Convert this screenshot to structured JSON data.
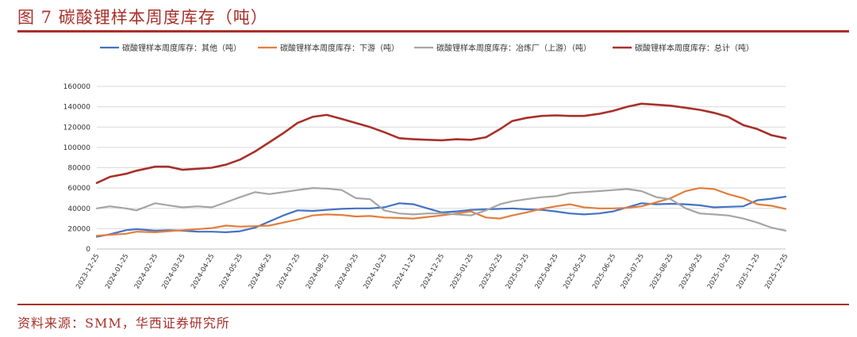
{
  "figure": {
    "title": "图 7 碳酸锂样本周度库存（吨）",
    "source": "资料来源：SMM，华西证券研究所"
  },
  "chart_data": {
    "type": "line",
    "ylim": [
      0,
      160000
    ],
    "yticks": [
      "0",
      "20000",
      "40000",
      "60000",
      "80000",
      "100000",
      "120000",
      "140000",
      "160000"
    ],
    "xticks": [
      "2023-12-25",
      "2024-01-25",
      "2024-02-25",
      "2024-03-25",
      "2024-04-25",
      "2024-05-25",
      "2024-06-25",
      "2024-07-25",
      "2024-08-25",
      "2024-09-25",
      "2024-10-25",
      "2024-11-25",
      "2024-12-25",
      "2025-01-25",
      "2025-02-25",
      "2025-03-25",
      "2025-04-25",
      "2025-05-25",
      "2025-06-25",
      "2025-07-25",
      "2025-08-25",
      "2025-09-25",
      "2025-10-25",
      "2025-11-25",
      "2025-12-25"
    ],
    "x_start": "2023-12-25",
    "x_end": "2025-12-25",
    "legend_position": "top",
    "series": [
      {
        "name": "碳酸锂样本周度库存：其他（吨）",
        "color": "#4472c4",
        "points": [
          [
            "2023-12-25",
            12000
          ],
          [
            "2024-01-08",
            14500
          ],
          [
            "2024-01-25",
            18500
          ],
          [
            "2024-02-05",
            19500
          ],
          [
            "2024-02-25",
            18000
          ],
          [
            "2024-03-10",
            18500
          ],
          [
            "2024-03-25",
            18000
          ],
          [
            "2024-04-10",
            17000
          ],
          [
            "2024-04-25",
            17000
          ],
          [
            "2024-05-10",
            16500
          ],
          [
            "2024-05-25",
            17500
          ],
          [
            "2024-06-10",
            21000
          ],
          [
            "2024-06-25",
            27000
          ],
          [
            "2024-07-10",
            33000
          ],
          [
            "2024-07-25",
            38000
          ],
          [
            "2024-08-10",
            37500
          ],
          [
            "2024-08-25",
            38500
          ],
          [
            "2024-09-10",
            39500
          ],
          [
            "2024-09-25",
            40000
          ],
          [
            "2024-10-10",
            40000
          ],
          [
            "2024-10-25",
            41000
          ],
          [
            "2024-11-10",
            45000
          ],
          [
            "2024-11-25",
            44000
          ],
          [
            "2024-12-10",
            40000
          ],
          [
            "2024-12-25",
            36000
          ],
          [
            "2025-01-10",
            37000
          ],
          [
            "2025-01-25",
            38500
          ],
          [
            "2025-02-10",
            39000
          ],
          [
            "2025-02-25",
            39500
          ],
          [
            "2025-03-10",
            40000
          ],
          [
            "2025-03-25",
            39000
          ],
          [
            "2025-04-10",
            38500
          ],
          [
            "2025-04-25",
            37000
          ],
          [
            "2025-05-10",
            35000
          ],
          [
            "2025-05-25",
            34000
          ],
          [
            "2025-06-10",
            35000
          ],
          [
            "2025-06-25",
            37000
          ],
          [
            "2025-07-10",
            41000
          ],
          [
            "2025-07-25",
            45000
          ],
          [
            "2025-08-10",
            44000
          ],
          [
            "2025-08-25",
            44500
          ],
          [
            "2025-09-10",
            44000
          ],
          [
            "2025-09-25",
            43000
          ],
          [
            "2025-10-10",
            41000
          ],
          [
            "2025-10-25",
            41500
          ],
          [
            "2025-11-10",
            42000
          ],
          [
            "2025-11-25",
            48000
          ],
          [
            "2025-12-10",
            49500
          ],
          [
            "2025-12-25",
            51500
          ]
        ]
      },
      {
        "name": "碳酸锂样本周度库存：下游（吨）",
        "color": "#e37e3c",
        "points": [
          [
            "2023-12-25",
            13000
          ],
          [
            "2024-01-08",
            14000
          ],
          [
            "2024-01-25",
            15000
          ],
          [
            "2024-02-05",
            17000
          ],
          [
            "2024-02-25",
            16500
          ],
          [
            "2024-03-10",
            17500
          ],
          [
            "2024-03-25",
            18500
          ],
          [
            "2024-04-10",
            19500
          ],
          [
            "2024-04-25",
            20500
          ],
          [
            "2024-05-10",
            23000
          ],
          [
            "2024-05-25",
            22000
          ],
          [
            "2024-06-10",
            22500
          ],
          [
            "2024-06-25",
            23000
          ],
          [
            "2024-07-10",
            26000
          ],
          [
            "2024-07-25",
            29000
          ],
          [
            "2024-08-10",
            33000
          ],
          [
            "2024-08-25",
            34000
          ],
          [
            "2024-09-10",
            33500
          ],
          [
            "2024-09-25",
            32000
          ],
          [
            "2024-10-10",
            32500
          ],
          [
            "2024-10-25",
            31000
          ],
          [
            "2024-11-10",
            30500
          ],
          [
            "2024-11-25",
            30000
          ],
          [
            "2024-12-10",
            31500
          ],
          [
            "2024-12-25",
            33000
          ],
          [
            "2025-01-10",
            35000
          ],
          [
            "2025-01-25",
            37000
          ],
          [
            "2025-02-10",
            31000
          ],
          [
            "2025-02-25",
            30000
          ],
          [
            "2025-03-10",
            33000
          ],
          [
            "2025-03-25",
            36000
          ],
          [
            "2025-04-10",
            39500
          ],
          [
            "2025-04-25",
            42000
          ],
          [
            "2025-05-10",
            44000
          ],
          [
            "2025-05-25",
            41000
          ],
          [
            "2025-06-10",
            40000
          ],
          [
            "2025-06-25",
            40000
          ],
          [
            "2025-07-10",
            40500
          ],
          [
            "2025-07-25",
            42000
          ],
          [
            "2025-08-10",
            46000
          ],
          [
            "2025-08-25",
            50000
          ],
          [
            "2025-09-10",
            57000
          ],
          [
            "2025-09-25",
            60000
          ],
          [
            "2025-10-10",
            59000
          ],
          [
            "2025-10-25",
            54000
          ],
          [
            "2025-11-10",
            50000
          ],
          [
            "2025-11-25",
            44000
          ],
          [
            "2025-12-10",
            42500
          ],
          [
            "2025-12-25",
            39500
          ]
        ]
      },
      {
        "name": "碳酸锂样本周度库存：冶炼厂（上游）（吨）",
        "color": "#a5a5a5",
        "points": [
          [
            "2023-12-25",
            40000
          ],
          [
            "2024-01-08",
            42000
          ],
          [
            "2024-01-25",
            40000
          ],
          [
            "2024-02-05",
            38000
          ],
          [
            "2024-02-25",
            45000
          ],
          [
            "2024-03-10",
            43000
          ],
          [
            "2024-03-25",
            41000
          ],
          [
            "2024-04-10",
            42000
          ],
          [
            "2024-04-25",
            41000
          ],
          [
            "2024-05-10",
            46000
          ],
          [
            "2024-05-25",
            51000
          ],
          [
            "2024-06-10",
            56000
          ],
          [
            "2024-06-25",
            54000
          ],
          [
            "2024-07-10",
            56000
          ],
          [
            "2024-07-25",
            58000
          ],
          [
            "2024-08-10",
            60000
          ],
          [
            "2024-08-25",
            59500
          ],
          [
            "2024-09-10",
            58000
          ],
          [
            "2024-09-25",
            50000
          ],
          [
            "2024-10-10",
            49000
          ],
          [
            "2024-10-25",
            38000
          ],
          [
            "2024-11-10",
            35000
          ],
          [
            "2024-11-25",
            34000
          ],
          [
            "2024-12-10",
            35000
          ],
          [
            "2024-12-25",
            35000
          ],
          [
            "2025-01-10",
            34000
          ],
          [
            "2025-01-25",
            33000
          ],
          [
            "2025-02-10",
            38000
          ],
          [
            "2025-02-25",
            44000
          ],
          [
            "2025-03-10",
            47000
          ],
          [
            "2025-03-25",
            49000
          ],
          [
            "2025-04-10",
            51000
          ],
          [
            "2025-04-25",
            52000
          ],
          [
            "2025-05-10",
            55000
          ],
          [
            "2025-05-25",
            56000
          ],
          [
            "2025-06-10",
            57000
          ],
          [
            "2025-06-25",
            58000
          ],
          [
            "2025-07-10",
            59000
          ],
          [
            "2025-07-25",
            57000
          ],
          [
            "2025-08-10",
            51000
          ],
          [
            "2025-08-25",
            49000
          ],
          [
            "2025-09-10",
            40000
          ],
          [
            "2025-09-25",
            35000
          ],
          [
            "2025-10-10",
            34000
          ],
          [
            "2025-10-25",
            33000
          ],
          [
            "2025-11-10",
            30000
          ],
          [
            "2025-11-25",
            26000
          ],
          [
            "2025-12-10",
            21000
          ],
          [
            "2025-12-25",
            18000
          ]
        ]
      },
      {
        "name": "碳酸锂样本周度库存：总计（吨）",
        "color": "#a8302a",
        "points": [
          [
            "2023-12-25",
            65000
          ],
          [
            "2024-01-08",
            71000
          ],
          [
            "2024-01-25",
            74000
          ],
          [
            "2024-02-05",
            77000
          ],
          [
            "2024-02-25",
            81000
          ],
          [
            "2024-03-10",
            81000
          ],
          [
            "2024-03-25",
            78000
          ],
          [
            "2024-04-10",
            79000
          ],
          [
            "2024-04-25",
            80000
          ],
          [
            "2024-05-10",
            83000
          ],
          [
            "2024-05-25",
            88000
          ],
          [
            "2024-06-10",
            96000
          ],
          [
            "2024-06-25",
            105000
          ],
          [
            "2024-07-10",
            114000
          ],
          [
            "2024-07-25",
            124000
          ],
          [
            "2024-08-10",
            130000
          ],
          [
            "2024-08-25",
            132000
          ],
          [
            "2024-09-10",
            128000
          ],
          [
            "2024-09-25",
            124000
          ],
          [
            "2024-10-10",
            120000
          ],
          [
            "2024-10-25",
            115000
          ],
          [
            "2024-11-10",
            109000
          ],
          [
            "2024-11-25",
            108000
          ],
          [
            "2024-12-10",
            107500
          ],
          [
            "2024-12-25",
            107000
          ],
          [
            "2025-01-10",
            108000
          ],
          [
            "2025-01-25",
            107500
          ],
          [
            "2025-02-10",
            110000
          ],
          [
            "2025-02-25",
            118000
          ],
          [
            "2025-03-10",
            126000
          ],
          [
            "2025-03-25",
            129000
          ],
          [
            "2025-04-10",
            131000
          ],
          [
            "2025-04-25",
            131500
          ],
          [
            "2025-05-10",
            131000
          ],
          [
            "2025-05-25",
            131000
          ],
          [
            "2025-06-10",
            133000
          ],
          [
            "2025-06-25",
            136000
          ],
          [
            "2025-07-10",
            140000
          ],
          [
            "2025-07-25",
            143000
          ],
          [
            "2025-08-10",
            142000
          ],
          [
            "2025-08-25",
            141000
          ],
          [
            "2025-09-10",
            139000
          ],
          [
            "2025-09-25",
            137000
          ],
          [
            "2025-10-10",
            134000
          ],
          [
            "2025-10-25",
            130000
          ],
          [
            "2025-11-10",
            122000
          ],
          [
            "2025-11-25",
            118000
          ],
          [
            "2025-12-10",
            112000
          ],
          [
            "2025-12-25",
            109000
          ]
        ]
      }
    ]
  }
}
